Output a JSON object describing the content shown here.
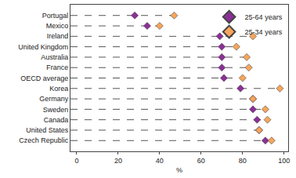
{
  "chart_data": {
    "type": "scatter",
    "orientation": "horizontal",
    "categories": [
      "Portugal",
      "Mexico",
      "Ireland",
      "United Kingdom",
      "Australia",
      "France",
      "OECD average",
      "Korea",
      "Germany",
      "Sweden",
      "Canada",
      "United States",
      "Czech Republic"
    ],
    "series": [
      {
        "name": "25-64 years",
        "color": "#8b2f97",
        "marker": "diamond",
        "values": [
          28,
          34,
          69,
          70,
          70,
          70,
          71,
          79,
          85,
          85,
          87,
          88,
          91
        ]
      },
      {
        "name": "25-34 years",
        "color": "#f7a55a",
        "marker": "diamond",
        "values": [
          47,
          40,
          85,
          77,
          82,
          83,
          80,
          98,
          85,
          91,
          92,
          88,
          94
        ]
      }
    ],
    "xlabel": "%",
    "xlim": [
      -3,
      102
    ],
    "xticks": [
      0,
      20,
      40,
      60,
      80,
      100
    ],
    "line_style": "dashed",
    "grid": false,
    "legend": "upper right"
  }
}
